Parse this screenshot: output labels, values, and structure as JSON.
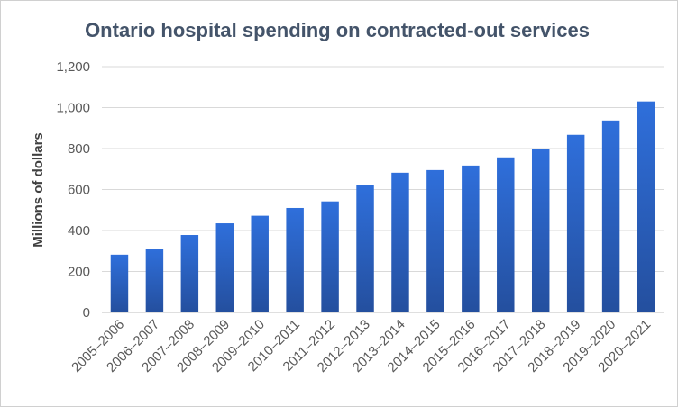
{
  "chart_data": {
    "type": "bar",
    "title": "Ontario hospital spending on contracted-out services",
    "xlabel": "",
    "ylabel": "Millions of dollars",
    "ylim": [
      0,
      1200
    ],
    "yticks": [
      0,
      200,
      400,
      600,
      800,
      1000,
      1200
    ],
    "ytick_labels": [
      "0",
      "200",
      "400",
      "600",
      "800",
      "1,000",
      "1,200"
    ],
    "grid": true,
    "legend": "none",
    "bar_color_top": "#2f6fdb",
    "bar_color_bottom": "#244f9e",
    "categories": [
      "2005–2006",
      "2006–2007",
      "2007–2008",
      "2008–2009",
      "2009–2010",
      "2010–2011",
      "2011–2012",
      "2012–2013",
      "2013–2014",
      "2014–2015",
      "2015–2016",
      "2016–2017",
      "2017–2018",
      "2018–2019",
      "2019–2020",
      "2020–2021"
    ],
    "values": [
      282,
      312,
      378,
      435,
      472,
      510,
      542,
      620,
      682,
      695,
      717,
      757,
      800,
      867,
      937,
      1030
    ]
  }
}
